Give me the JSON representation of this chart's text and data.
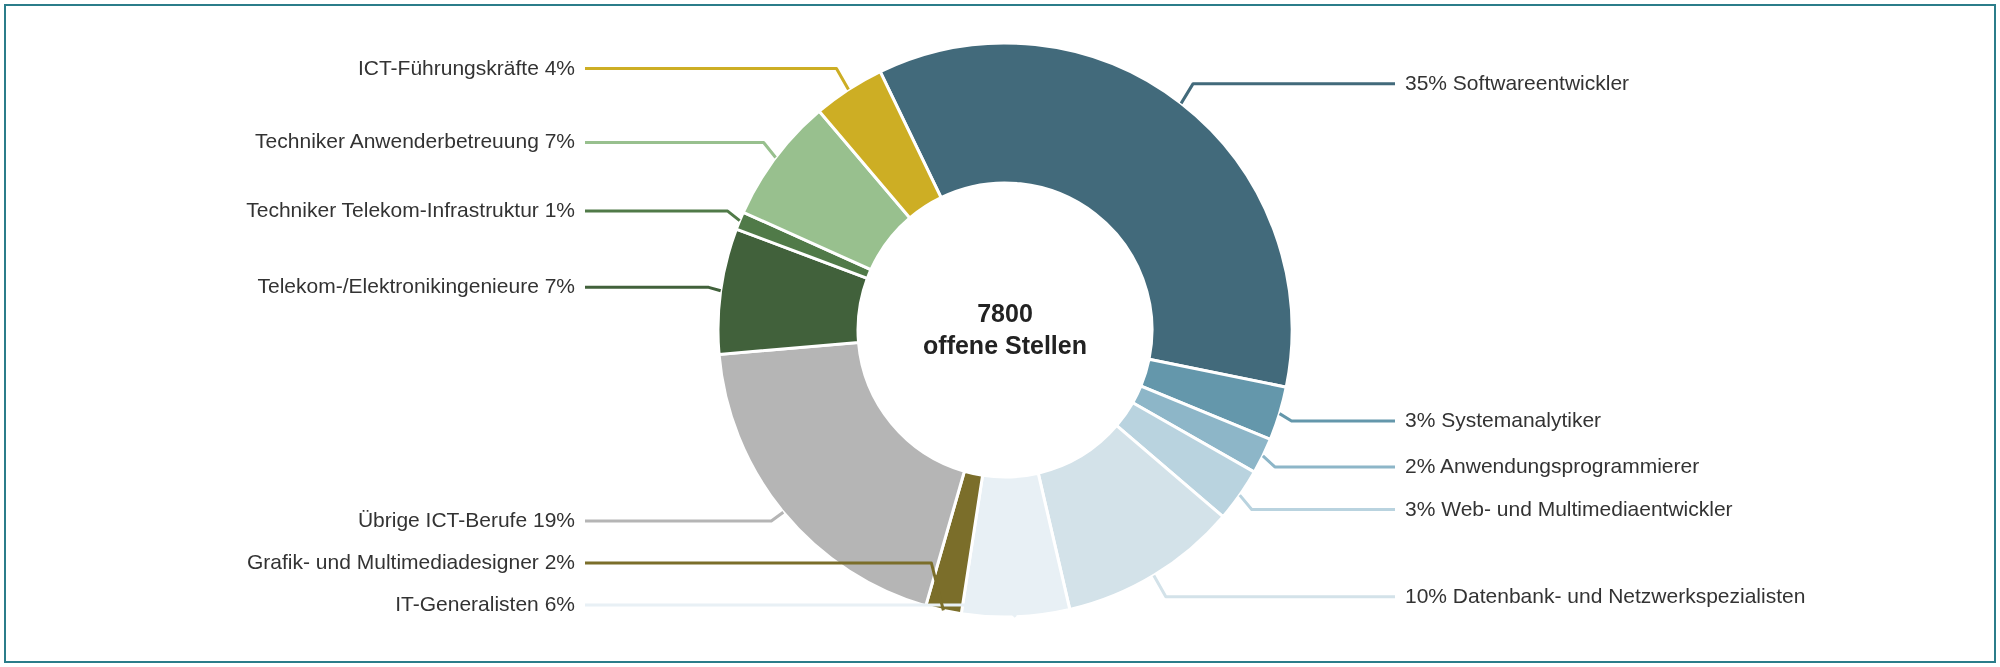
{
  "chart_data": {
    "type": "donut",
    "categories": [
      "Softwareentwickler",
      "Systemanalytiker",
      "Anwendungsprogrammierer",
      "Web- und Multimediaentwickler",
      "Datenbank- und Netzwerkspezialisten",
      "IT-Generalisten",
      "Grafik- und Multimediadesigner",
      "Übrige ICT-Berufe",
      "Telekom-/Elektronikingenieure",
      "Techniker Telekom-Infrastruktur",
      "Techniker Anwenderbetreuung",
      "ICT-Führungskräfte"
    ],
    "values": [
      35,
      3,
      2,
      3,
      10,
      6,
      2,
      19,
      7,
      1,
      7,
      4
    ],
    "value_labels": [
      "35%",
      "3%",
      "2%",
      "3%",
      "10%",
      "6%",
      "2%",
      "19%",
      "7%",
      "1%",
      "7%",
      "4%"
    ],
    "colors": [
      "#426a7b",
      "#6497ab",
      "#8db6c8",
      "#b9d3df",
      "#d3e2e9",
      "#e8f0f5",
      "#7b6e2a",
      "#b5b5b5",
      "#41613b",
      "#507a48",
      "#98c08e",
      "#cdae24"
    ],
    "annotations": [
      "7800",
      "offene Stellen"
    ]
  }
}
